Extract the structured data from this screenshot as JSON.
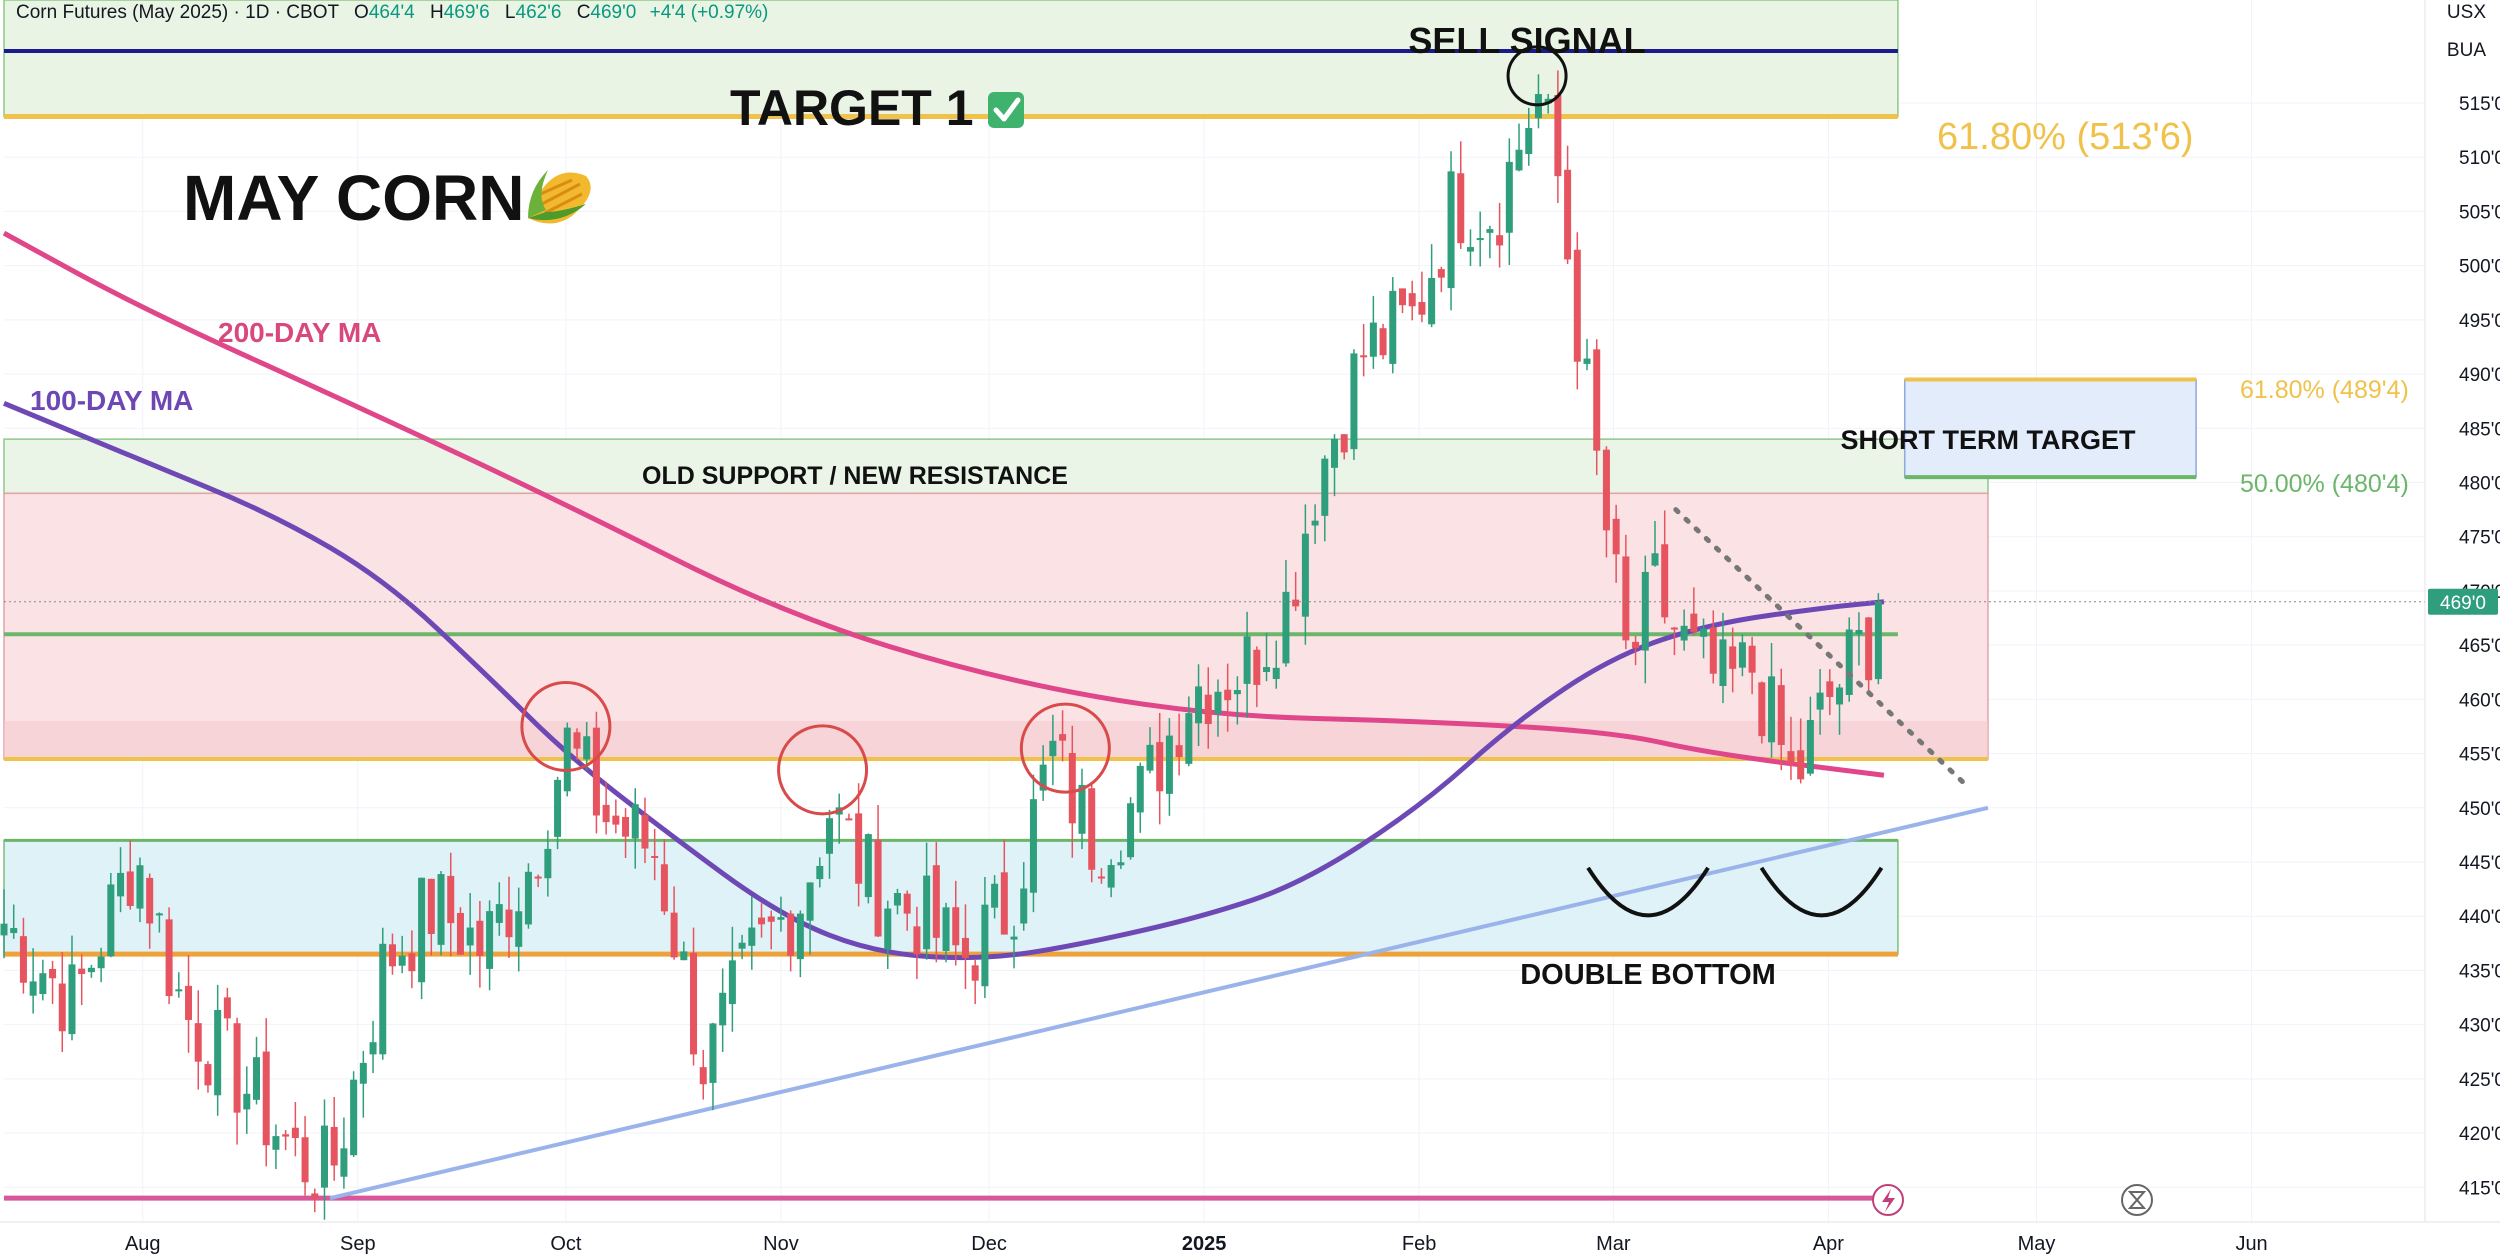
{
  "header": {
    "symbol_title": "Corn Futures (May 2025) · 1D · CBOT",
    "open_label": "O",
    "open": "464'4",
    "high_label": "H",
    "high": "469'6",
    "low_label": "L",
    "low": "462'6",
    "close_label": "C",
    "close": "469'0",
    "change": "+4'4 (+0.97%)"
  },
  "corner": {
    "currency": "USX",
    "unit": "BUA"
  },
  "colors": {
    "up": "#2e9e7c",
    "down": "#e5545f",
    "ma100": "#6e49b5",
    "ma200": "#e0468a",
    "gold": "#f0c24b",
    "green_level": "#6cb66a",
    "orange_level": "#f0a23a",
    "navy": "#1a1a8c",
    "trend": "#9ab3ea",
    "pink_level": "#d9569a"
  },
  "annotations": {
    "title": "MAY CORN",
    "title_icon": "corn-icon",
    "target1": "TARGET 1",
    "target1_icon": "check-icon",
    "sell_signal": "SELL SIGNAL",
    "old_support": "OLD SUPPORT / NEW RESISTANCE",
    "short_term_target": "SHORT TERM TARGET",
    "double_bottom": "DOUBLE BOTTOM",
    "ma200_label": "200-DAY MA",
    "ma100_label": "100-DAY MA",
    "fib_major": "61.80% (513'6)",
    "fib_short_618": "61.80% (489'4)",
    "fib_short_50": "50.00% (480'4)"
  },
  "chart_data": {
    "type": "candlestick",
    "x_axis": {
      "months": [
        "Aug",
        "Sep",
        "Oct",
        "Nov",
        "Dec",
        "2025",
        "Feb",
        "Mar",
        "Apr",
        "May",
        "Jun"
      ],
      "month_starts": [
        "2024-08-01",
        "2024-09-01",
        "2024-10-01",
        "2024-11-01",
        "2024-12-01",
        "2025-01-01",
        "2025-02-01",
        "2025-03-01",
        "2025-04-01",
        "2025-05-01",
        "2025-06-01"
      ],
      "range": [
        "2024-07-12",
        "2025-06-26"
      ]
    },
    "y_axis": {
      "ticks": [
        "415'0",
        "420'0",
        "425'0",
        "430'0",
        "435'0",
        "440'0",
        "445'0",
        "450'0",
        "455'0",
        "460'0",
        "465'0",
        "470'0",
        "475'0",
        "480'0",
        "485'0",
        "490'0",
        "495'0",
        "500'0",
        "505'0",
        "510'0",
        "515'0"
      ],
      "tick_values": [
        415,
        420,
        425,
        430,
        435,
        440,
        445,
        450,
        455,
        460,
        465,
        470,
        475,
        480,
        485,
        490,
        495,
        500,
        505,
        510,
        515
      ],
      "range": [
        411.8,
        524.5
      ],
      "grid": true
    },
    "last_price": {
      "label": "469'0",
      "value": 469.0
    },
    "closes": [
      [
        "2024-07-12",
        439.4
      ],
      [
        "2024-07-22",
        432
      ],
      [
        "2024-07-31",
        446
      ],
      [
        "2024-08-07",
        431
      ],
      [
        "2024-08-15",
        425
      ],
      [
        "2024-08-23",
        418
      ],
      [
        "2024-08-28",
        416
      ],
      [
        "2024-09-05",
        436
      ],
      [
        "2024-09-12",
        441
      ],
      [
        "2024-09-19",
        437
      ],
      [
        "2024-09-26",
        445
      ],
      [
        "2024-10-01",
        456
      ],
      [
        "2024-10-07",
        449
      ],
      [
        "2024-10-14",
        446
      ],
      [
        "2024-10-21",
        426
      ],
      [
        "2024-10-28",
        436
      ],
      [
        "2024-11-04",
        442
      ],
      [
        "2024-11-08",
        450
      ],
      [
        "2024-11-14",
        443
      ],
      [
        "2024-11-21",
        440
      ],
      [
        "2024-11-27",
        436
      ],
      [
        "2024-12-04",
        441
      ],
      [
        "2024-12-10",
        455
      ],
      [
        "2024-12-16",
        447
      ],
      [
        "2024-12-23",
        451
      ],
      [
        "2024-12-30",
        461
      ],
      [
        "2025-01-07",
        463
      ],
      [
        "2025-01-13",
        469
      ],
      [
        "2025-01-17",
        480
      ],
      [
        "2025-01-24",
        492
      ],
      [
        "2025-01-31",
        495
      ],
      [
        "2025-02-06",
        506
      ],
      [
        "2025-02-12",
        505
      ],
      [
        "2025-02-18",
        516
      ],
      [
        "2025-02-21",
        508
      ],
      [
        "2025-02-26",
        484
      ],
      [
        "2025-03-03",
        463
      ],
      [
        "2025-03-07",
        470
      ],
      [
        "2025-03-12",
        464
      ],
      [
        "2025-03-17",
        461
      ],
      [
        "2025-03-21",
        463
      ],
      [
        "2025-03-27",
        452
      ],
      [
        "2025-04-01",
        460
      ],
      [
        "2025-04-07",
        466
      ],
      [
        "2025-04-09",
        469
      ]
    ],
    "ma_100": {
      "name": "100-DAY MA",
      "points": [
        [
          "2024-07-12",
          487.3
        ],
        [
          "2024-08-01",
          482
        ],
        [
          "2024-08-20",
          477
        ],
        [
          "2024-09-05",
          471
        ],
        [
          "2024-09-20",
          462
        ],
        [
          "2024-10-01",
          455
        ],
        [
          "2024-10-15",
          448
        ],
        [
          "2024-11-01",
          440
        ],
        [
          "2024-11-15",
          436.5
        ],
        [
          "2024-12-01",
          436
        ],
        [
          "2024-12-15",
          437.5
        ],
        [
          "2025-01-01",
          440
        ],
        [
          "2025-01-15",
          443
        ],
        [
          "2025-02-01",
          450
        ],
        [
          "2025-02-15",
          458
        ],
        [
          "2025-03-01",
          464
        ],
        [
          "2025-03-15",
          467
        ],
        [
          "2025-04-01",
          468.5
        ],
        [
          "2025-04-09",
          469
        ]
      ]
    },
    "ma_200": {
      "name": "200-DAY MA",
      "points": [
        [
          "2024-07-12",
          503
        ],
        [
          "2024-08-01",
          496
        ],
        [
          "2024-09-01",
          487
        ],
        [
          "2024-10-01",
          478
        ],
        [
          "2024-11-01",
          468
        ],
        [
          "2024-12-01",
          462
        ],
        [
          "2025-01-01",
          458.5
        ],
        [
          "2025-02-01",
          458
        ],
        [
          "2025-03-01",
          457
        ],
        [
          "2025-03-15",
          455
        ],
        [
          "2025-04-09",
          453
        ]
      ]
    },
    "levels": [
      {
        "name": "target-line",
        "value": 519.8,
        "to": "2025-04-09"
      },
      {
        "name": "fib-618-major",
        "value": 513.75,
        "to": "2025-04-09"
      },
      {
        "name": "green-466",
        "value": 466.0,
        "to": "2025-04-09"
      },
      {
        "name": "gold-454",
        "value": 454.5,
        "to": "2025-04-09"
      },
      {
        "name": "green-447",
        "value": 447.0,
        "to": "2025-04-09"
      },
      {
        "name": "orange-436",
        "value": 436.5,
        "to": "2025-04-09"
      },
      {
        "name": "pink-414",
        "value": 414.0,
        "to": "2025-04-09"
      }
    ],
    "zones": [
      {
        "name": "target-zone",
        "from": 513.75,
        "to": 524.5
      },
      {
        "name": "resistance-zone",
        "from": 479.0,
        "to": 484.0
      },
      {
        "name": "red-zone",
        "from": 454.5,
        "to": 479.0
      },
      {
        "name": "support-zone",
        "from": 436.5,
        "to": 447.0
      }
    ],
    "short_term_box": {
      "from": 480.5,
      "to": 489.5,
      "x_from": "2025-04-12",
      "x_to": "2025-05-24"
    },
    "trendline": {
      "from": [
        "2024-08-28",
        414
      ],
      "to": [
        "2025-04-24",
        450.0
      ]
    },
    "down_trend": {
      "from": [
        "2025-03-10",
        477.5
      ],
      "to": [
        "2025-04-21",
        452
      ]
    },
    "circles": [
      {
        "at": [
          "2024-10-01",
          457.5
        ],
        "color": "red"
      },
      {
        "at": [
          "2024-11-07",
          453.5
        ],
        "color": "red"
      },
      {
        "at": [
          "2024-12-12",
          455.5
        ],
        "color": "red"
      },
      {
        "at": [
          "2025-02-18",
          517.5
        ],
        "color": "black"
      }
    ],
    "bottoms": [
      {
        "at": [
          "2025-03-06",
          444
        ]
      },
      {
        "at": [
          "2025-03-31",
          444
        ]
      }
    ]
  }
}
